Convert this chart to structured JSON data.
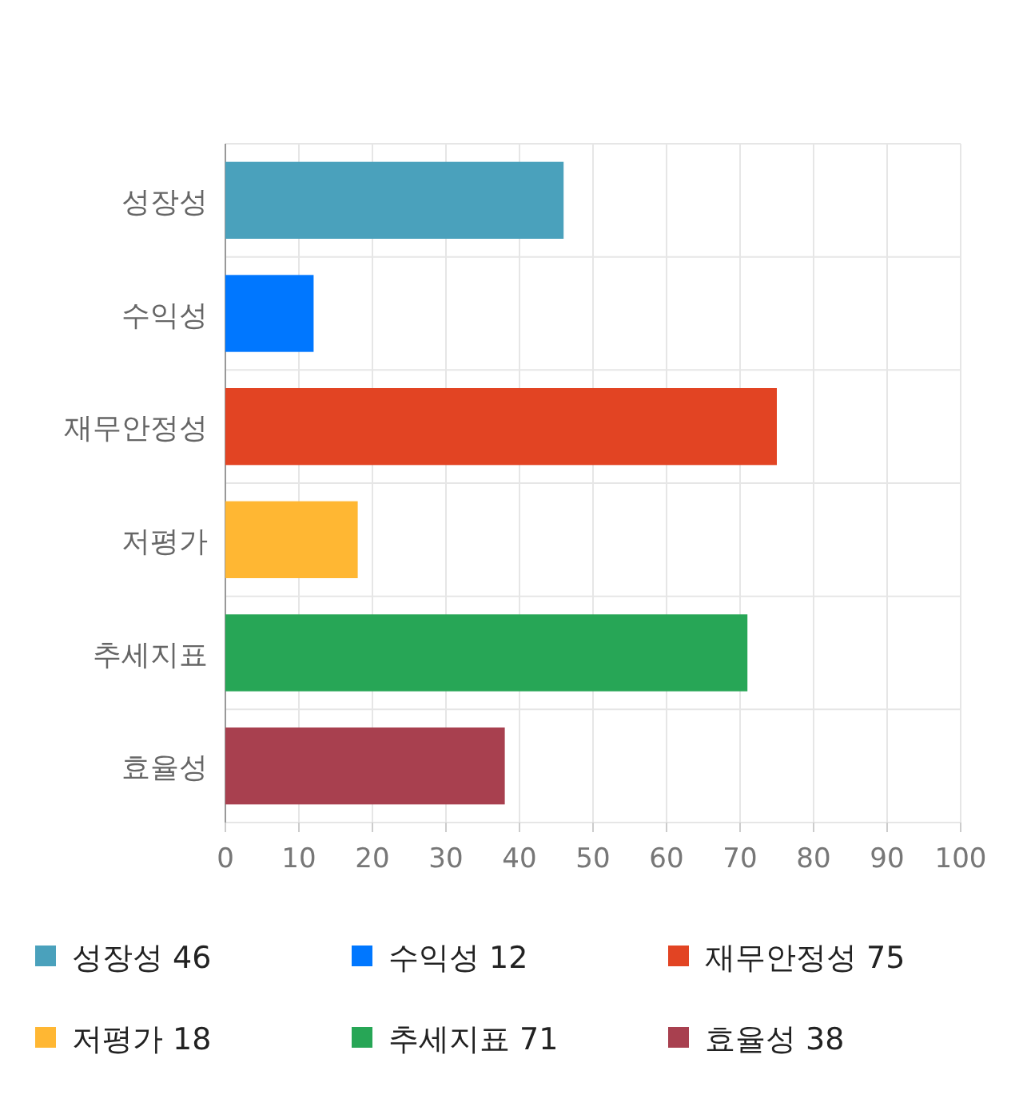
{
  "chart_data": {
    "type": "bar",
    "orientation": "horizontal",
    "categories": [
      "성장성",
      "수익성",
      "재무안정성",
      "저평가",
      "추세지표",
      "효율성"
    ],
    "series": [
      {
        "name": "성장성 46",
        "color": "#4aa1bc",
        "values": [
          46,
          null,
          null,
          null,
          null,
          null
        ]
      },
      {
        "name": "수익성 12",
        "color": "#0077ff",
        "values": [
          null,
          12,
          null,
          null,
          null,
          null
        ]
      },
      {
        "name": "재무안정성 75",
        "color": "#e24423",
        "values": [
          null,
          null,
          75,
          null,
          null,
          null
        ]
      },
      {
        "name": "저평가 18",
        "color": "#ffb733",
        "values": [
          null,
          null,
          null,
          18,
          null,
          null
        ]
      },
      {
        "name": "추세지표 71",
        "color": "#27a656",
        "values": [
          null,
          null,
          null,
          null,
          71,
          null
        ]
      },
      {
        "name": "효율성 38",
        "color": "#a8404f",
        "values": [
          null,
          null,
          null,
          null,
          null,
          38
        ]
      }
    ],
    "xlim": [
      0,
      100
    ],
    "xticks": [
      0,
      10,
      20,
      30,
      40,
      50,
      60,
      70,
      80,
      90,
      100
    ],
    "grid": true,
    "legend": "bottom"
  }
}
